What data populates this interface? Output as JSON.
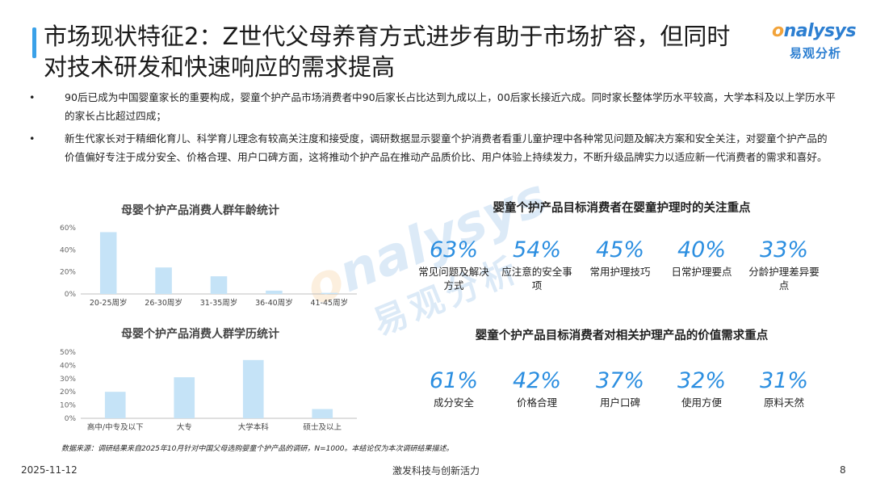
{
  "title": "市场现状特征2：Z世代父母养育方式进步有助于市场扩容，但同时对技术研发和快速响应的需求提高",
  "logo": {
    "en_prefix": "o",
    "en_rest": "nalysys",
    "cn": "易观分析"
  },
  "bullets": [
    {
      "marker": "•",
      "text": "90后已成为中国婴童家长的重要构成，婴童个护产品市场消费者中90后家长占比达到九成以上，00后家长接近六成。同时家长整体学历水平较高，大学本科及以上学历水平的家长占比超过四成；"
    },
    {
      "marker": "•",
      "text": "新生代家长对于精细化育儿、科学育儿理念有较高关注度和接受度，调研数据显示婴童个护消费者看重儿童护理中各种常见问题及解决方案和安全关注，对婴童个护产品的价值偏好专注于成分安全、价格合理、用户口碑方面，这将推动个护产品在推动产品质价比、用户体验上持续发力，不断升级品牌实力以适应新一代消费者的需求和喜好。"
    }
  ],
  "watermark": {
    "en_prefix": "o",
    "en_rest": "nalysys",
    "cn": "易观分析"
  },
  "chart_data": [
    {
      "type": "bar",
      "title": "母婴个护产品消费人群年龄统计",
      "categories": [
        "20-25周岁",
        "26-30周岁",
        "31-35周岁",
        "36-40周岁",
        "41-45周岁"
      ],
      "values": [
        56,
        24,
        16,
        3,
        1
      ],
      "ylim": [
        0,
        60
      ],
      "yticks": [
        "0%",
        "20%",
        "40%",
        "60%"
      ],
      "grid": false,
      "color": "#c5e3f7"
    },
    {
      "type": "bar",
      "title": "母婴个护产品消费人群学历统计",
      "categories": [
        "高中/中专及以下",
        "大专",
        "大学本科",
        "硕士及以上"
      ],
      "values": [
        20,
        31,
        44,
        7
      ],
      "ylim": [
        0,
        50
      ],
      "yticks": [
        "0%",
        "10%",
        "20%",
        "30%",
        "40%",
        "50%"
      ],
      "grid": false,
      "color": "#c5e3f7"
    }
  ],
  "focus": {
    "title": "婴童个护产品目标消费者在婴童护理时的关注重点",
    "items": [
      {
        "pct": "63%",
        "label": "常见问题及解决方式"
      },
      {
        "pct": "54%",
        "label": "应注意的安全事项"
      },
      {
        "pct": "45%",
        "label": "常用护理技巧"
      },
      {
        "pct": "40%",
        "label": "日常护理要点"
      },
      {
        "pct": "33%",
        "label": "分龄护理差异要点"
      }
    ]
  },
  "value": {
    "title": "婴童个护产品目标消费者对相关护理产品的价值需求重点",
    "items": [
      {
        "pct": "61%",
        "label": "成分安全"
      },
      {
        "pct": "42%",
        "label": "价格合理"
      },
      {
        "pct": "37%",
        "label": "用户口碑"
      },
      {
        "pct": "32%",
        "label": "使用方便"
      },
      {
        "pct": "31%",
        "label": "原料天然"
      }
    ]
  },
  "source": "数据来源：调研结果来自2025年10月针对中国父母选购婴童个护产品的调研，N=1000。本结论仅为本次调研结果描述。",
  "footer": {
    "date": "2025-11-12",
    "center": "激发科技与创新活力",
    "page": "8"
  },
  "colors": {
    "accent": "#3aa1e8",
    "stat": "#2b8ee0",
    "bar": "#c5e3f7"
  }
}
